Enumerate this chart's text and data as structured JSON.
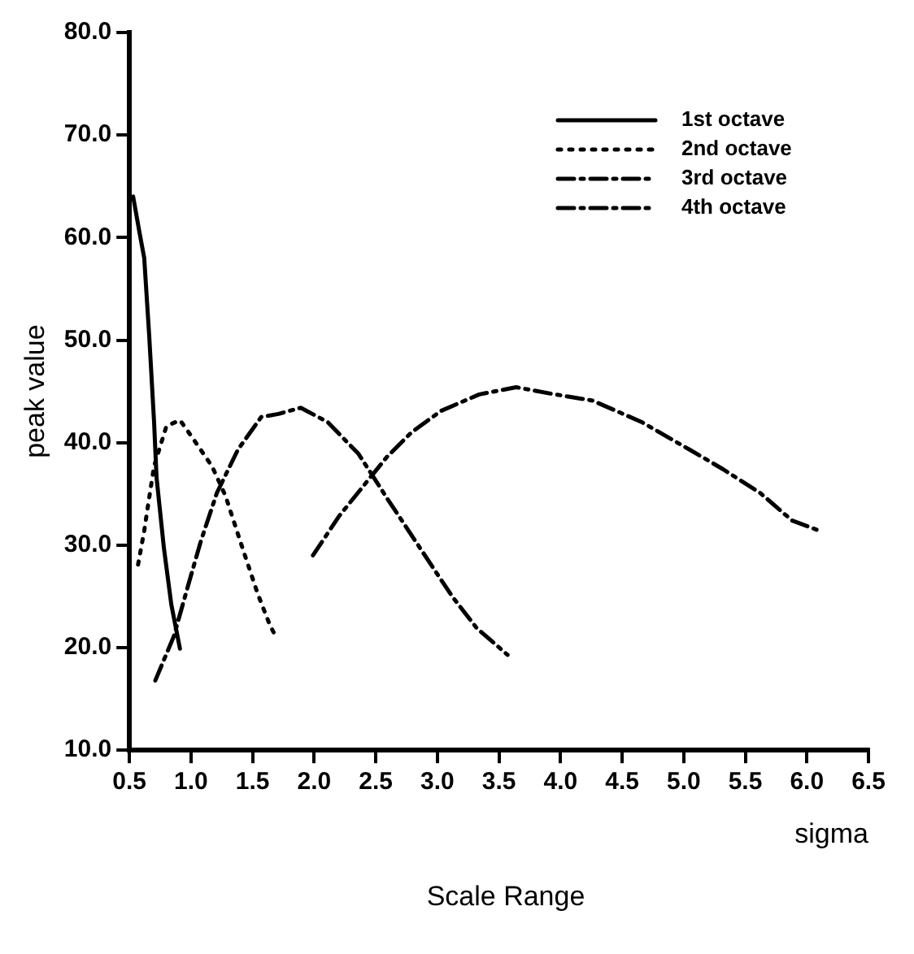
{
  "chart_data": {
    "type": "line",
    "xlabel": "sigma",
    "ylabel": "peak value",
    "annotations": [
      "Scale Range"
    ],
    "xlim": [
      0.5,
      6.5
    ],
    "xticks": [
      {
        "value": 0.5,
        "label": "0.5"
      },
      {
        "value": 1,
        "label": "1.0"
      },
      {
        "value": 1.5,
        "label": "1.5"
      },
      {
        "value": 2,
        "label": "2.0"
      },
      {
        "value": 2.5,
        "label": "2.5"
      },
      {
        "value": 3,
        "label": "3.0"
      },
      {
        "value": 3.5,
        "label": "3.5"
      },
      {
        "value": 4,
        "label": "4.0"
      },
      {
        "value": 4.5,
        "label": "4.5"
      },
      {
        "value": 5,
        "label": "5.0"
      },
      {
        "value": 5.5,
        "label": "5.5"
      },
      {
        "value": 6,
        "label": "6.0"
      },
      {
        "value": 6.5,
        "label": "6.5"
      }
    ],
    "ylim": [
      10,
      80
    ],
    "yticks": [
      {
        "value": 10,
        "label": "10.0"
      },
      {
        "value": 20,
        "label": "20.0"
      },
      {
        "value": 30,
        "label": "30.0"
      },
      {
        "value": 40,
        "label": "40.0"
      },
      {
        "value": 50,
        "label": "50.0"
      },
      {
        "value": 60,
        "label": "60.0"
      },
      {
        "value": 70,
        "label": "70.0"
      },
      {
        "value": 80,
        "label": "80.0"
      }
    ],
    "grid": false,
    "legend": "top right",
    "marker": "none",
    "series": [
      {
        "name": "1st octave",
        "color": "#000000",
        "line_style": "solid",
        "x": [
          0.53,
          0.58,
          0.62,
          0.66,
          0.7,
          0.72,
          0.78,
          0.84,
          0.91
        ],
        "values": [
          64,
          60.6,
          58,
          50.5,
          42,
          36.6,
          29.7,
          24.2,
          19.9
        ]
      },
      {
        "name": "2nd octave",
        "color": "#000000",
        "line_style": "dotted",
        "x": [
          0.57,
          0.62,
          0.66,
          0.7,
          0.8,
          0.91,
          1.01,
          1.17,
          1.28,
          1.41,
          1.54,
          1.64,
          1.7
        ],
        "values": [
          28.1,
          31.4,
          34.6,
          37.7,
          41.6,
          42.2,
          40.5,
          37.7,
          34.8,
          30,
          25.3,
          22.2,
          20.8
        ]
      },
      {
        "name": "3rd octave",
        "color": "#000000",
        "line_style": "dashed",
        "x": [
          0.71,
          0.86,
          0.97,
          1.08,
          1.21,
          1.38,
          1.57,
          1.71,
          1.89,
          2.11,
          2.36,
          2.59,
          2.86,
          3.12,
          3.32,
          3.57
        ],
        "values": [
          16.8,
          21.1,
          25.8,
          30.4,
          35.1,
          39.3,
          42.5,
          42.8,
          43.4,
          42,
          38.9,
          34.6,
          29.7,
          25,
          21.9,
          19.3
        ]
      },
      {
        "name": "4th octave",
        "color": "#000000",
        "line_style": "dashed",
        "x": [
          1.99,
          2.2,
          2.59,
          2.79,
          3.03,
          3.34,
          3.64,
          3.91,
          4.26,
          4.66,
          5.05,
          5.32,
          5.62,
          5.88,
          6.08
        ],
        "values": [
          29,
          32.8,
          38.6,
          41,
          43.1,
          44.7,
          45.4,
          44.8,
          44.1,
          42,
          39.3,
          37.4,
          35.1,
          32.4,
          31.5
        ]
      }
    ]
  }
}
